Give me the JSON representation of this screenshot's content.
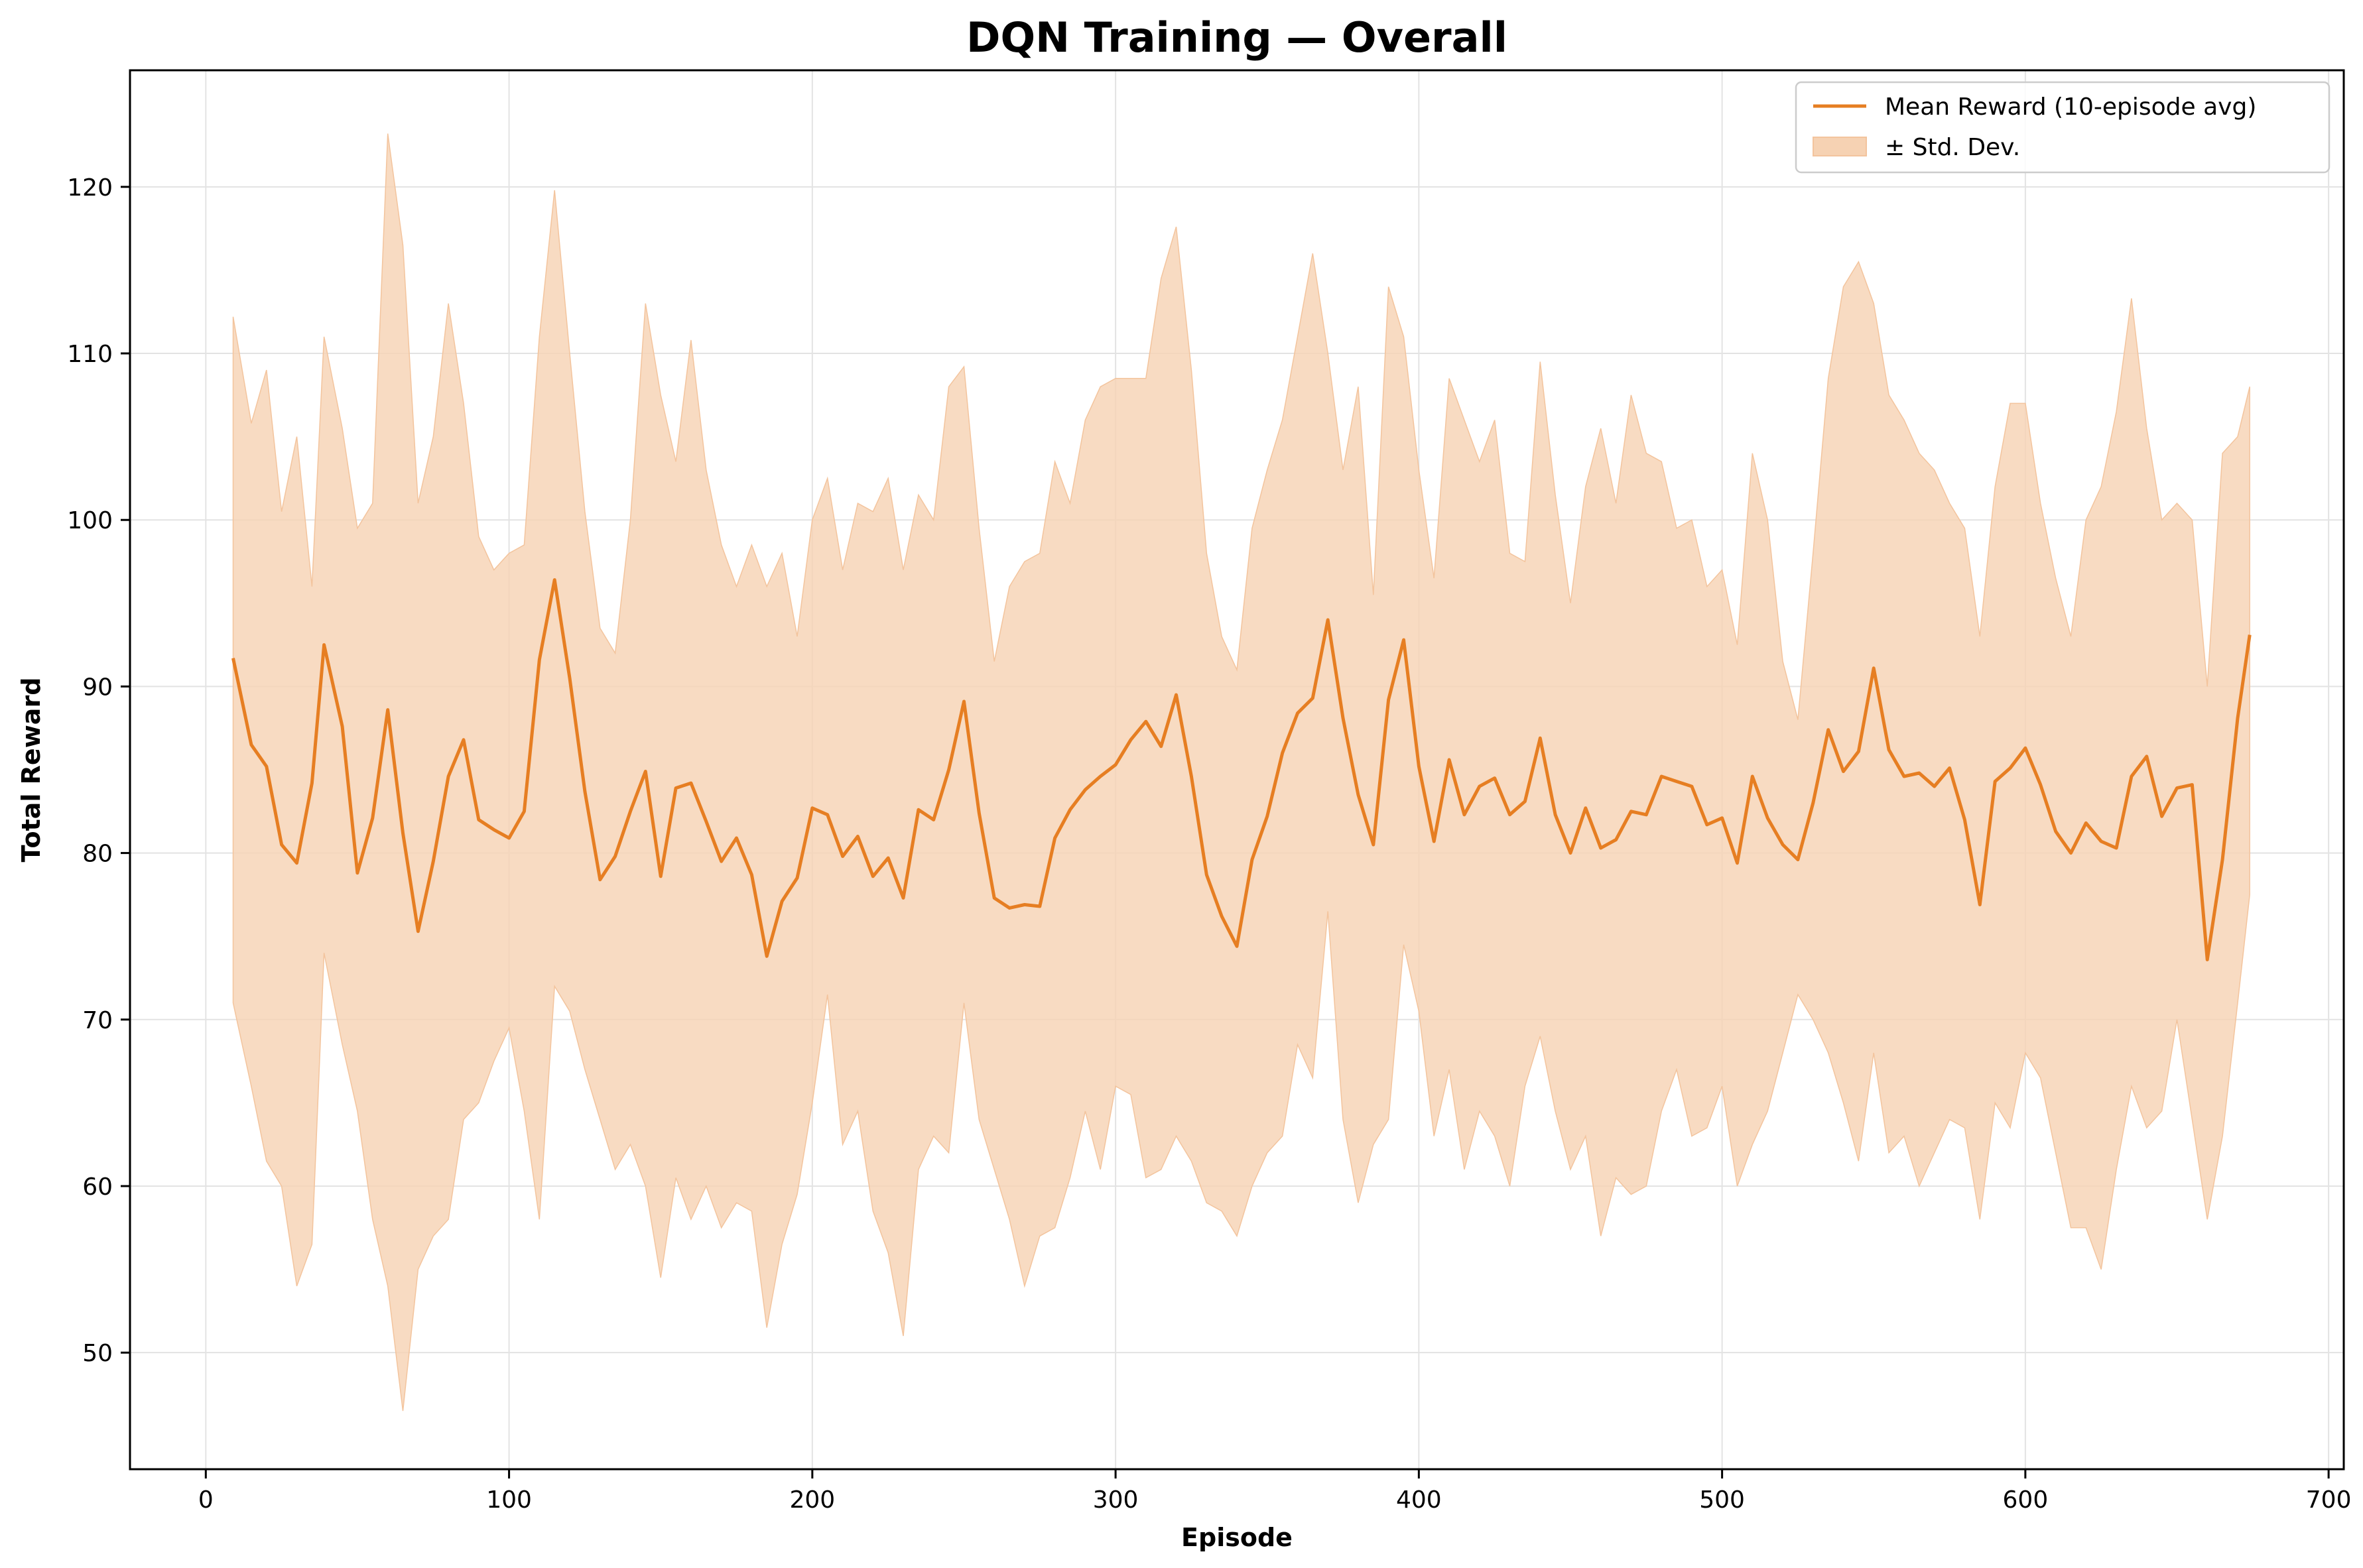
{
  "chart_data": {
    "type": "line",
    "title": "DQN Training — Overall",
    "xlabel": "Episode",
    "ylabel": "Total Reward",
    "xlim": [
      -25,
      705
    ],
    "ylim": [
      43,
      127
    ],
    "grid": true,
    "legend_position": "top-right",
    "xticks": [
      0,
      100,
      200,
      300,
      400,
      500,
      600,
      700
    ],
    "yticks": [
      50,
      60,
      70,
      80,
      90,
      100,
      110,
      120
    ],
    "legend": {
      "mean_label": "Mean Reward (10-episode avg)",
      "band_label": "± Std. Dev."
    },
    "colors": {
      "line": "#e67e22",
      "band": "#f6d2b3",
      "grid": "#e3e3e3",
      "axis": "#000000"
    },
    "series": [
      {
        "name": "Mean Reward (10-episode avg)",
        "x": [
          9,
          15,
          20,
          25,
          30,
          35,
          39,
          45,
          50,
          55,
          60,
          65,
          70,
          75,
          80,
          85,
          90,
          95,
          100,
          105,
          110,
          115,
          120,
          125,
          130,
          135,
          140,
          145,
          150,
          155,
          160,
          165,
          170,
          175,
          180,
          185,
          190,
          195,
          200,
          205,
          210,
          215,
          220,
          225,
          230,
          235,
          240,
          245,
          250,
          255,
          260,
          265,
          270,
          275,
          280,
          285,
          290,
          295,
          300,
          305,
          310,
          315,
          320,
          325,
          330,
          335,
          340,
          345,
          350,
          355,
          360,
          365,
          370,
          375,
          380,
          385,
          390,
          395,
          400,
          405,
          410,
          415,
          420,
          425,
          430,
          435,
          440,
          445,
          450,
          455,
          460,
          465,
          470,
          475,
          480,
          485,
          490,
          495,
          500,
          505,
          510,
          515,
          520,
          525,
          530,
          535,
          540,
          545,
          550,
          555,
          560,
          565,
          570,
          575,
          580,
          585,
          590,
          595,
          600,
          605,
          610,
          615,
          620,
          625,
          630,
          635,
          640,
          645,
          650,
          655,
          660,
          665,
          670,
          674
        ],
        "y": [
          91.7,
          86.5,
          85.2,
          80.5,
          79.4,
          84.2,
          92.5,
          87.6,
          78.8,
          82.1,
          88.6,
          81.2,
          75.3,
          79.5,
          84.6,
          86.8,
          82.0,
          81.4,
          80.9,
          82.5,
          91.6,
          96.4,
          90.5,
          83.7,
          78.4,
          79.8,
          82.5,
          84.9,
          78.6,
          83.9,
          84.2,
          81.9,
          79.5,
          80.9,
          78.7,
          73.8,
          77.1,
          78.5,
          82.7,
          82.3,
          79.8,
          81.0,
          78.6,
          79.7,
          77.3,
          82.6,
          82.0,
          85.0,
          89.1,
          82.4,
          77.3,
          76.7,
          76.9,
          76.8,
          80.9,
          82.6,
          83.8,
          84.6,
          85.3,
          86.8,
          87.9,
          86.4,
          89.5,
          84.6,
          78.7,
          76.2,
          74.4,
          79.6,
          82.2,
          86.0,
          88.4,
          89.3,
          94.0,
          88.1,
          83.5,
          80.5,
          89.2,
          92.8,
          85.2,
          80.7,
          85.6,
          82.3,
          84.0,
          84.5,
          82.3,
          83.1,
          86.9,
          82.3,
          80.0,
          82.7,
          80.3,
          80.8,
          82.5,
          82.3,
          84.6,
          84.3,
          84.0,
          81.7,
          82.1,
          79.4,
          84.6,
          82.1,
          80.5,
          79.6,
          83.0,
          87.4,
          84.9,
          86.1,
          91.1,
          86.2,
          84.6,
          84.8,
          84.0,
          85.1,
          82.0,
          76.9,
          84.3,
          85.1,
          86.3,
          84.1,
          81.3,
          80.0,
          81.8,
          80.7,
          80.3,
          84.6,
          85.8,
          82.2,
          83.9,
          84.1,
          73.6,
          79.6,
          88.1,
          93.1
        ]
      },
      {
        "name": "± Std. Dev.",
        "upper": [
          112.2,
          105.8,
          109.0,
          100.5,
          105.0,
          96.0,
          111.0,
          105.5,
          99.5,
          101.0,
          123.2,
          116.5,
          101.0,
          105.0,
          113.0,
          107.0,
          99.0,
          97.0,
          98.0,
          98.5,
          111.0,
          119.8,
          110.0,
          100.5,
          93.5,
          92.0,
          100.0,
          113.0,
          107.5,
          103.5,
          110.8,
          103.0,
          98.5,
          96.0,
          98.5,
          96.0,
          98.0,
          93.0,
          100.0,
          102.5,
          97.0,
          101.0,
          100.5,
          102.5,
          97.0,
          101.5,
          100.0,
          108.0,
          109.2,
          99.5,
          91.5,
          96.0,
          97.5,
          98.0,
          103.5,
          101.0,
          106.0,
          108.0,
          108.5,
          108.5,
          108.5,
          114.5,
          117.6,
          109.0,
          98.0,
          93.0,
          91.0,
          99.5,
          103.0,
          106.0,
          111.0,
          116.0,
          110.0,
          103.0,
          108.0,
          95.5,
          114.0,
          111.0,
          103.0,
          96.5,
          108.5,
          106.0,
          103.5,
          106.0,
          98.0,
          97.5,
          109.5,
          101.5,
          95.0,
          102.0,
          105.5,
          101.0,
          107.5,
          104.0,
          103.5,
          99.5,
          100.0,
          96.0,
          97.0,
          92.5,
          104.0,
          100.0,
          91.5,
          88.0,
          98.0,
          108.5,
          114.0,
          115.5,
          113.0,
          107.5,
          106.0,
          104.0,
          103.0,
          101.0,
          99.5,
          93.0,
          102.0,
          107.0,
          107.0,
          101.0,
          96.5,
          93.0,
          100.0,
          102.0,
          106.5,
          113.3,
          105.5,
          100.0,
          101.0,
          100.0,
          90.0,
          104.0,
          105.0,
          108.0
        ],
        "lower": [
          71.0,
          66.0,
          61.5,
          60.0,
          54.0,
          56.5,
          74.0,
          68.5,
          64.5,
          58.0,
          54.0,
          46.5,
          55.0,
          57.0,
          58.0,
          64.0,
          65.0,
          67.5,
          69.5,
          64.5,
          58.0,
          72.0,
          70.5,
          67.0,
          64.0,
          61.0,
          62.5,
          60.0,
          54.5,
          60.5,
          58.0,
          60.0,
          57.5,
          59.0,
          58.5,
          51.5,
          56.5,
          59.5,
          65.0,
          71.5,
          62.5,
          64.5,
          58.5,
          56.0,
          51.0,
          61.0,
          63.0,
          62.0,
          71.0,
          64.0,
          61.0,
          58.0,
          54.0,
          57.0,
          57.5,
          60.5,
          64.5,
          61.0,
          66.0,
          65.5,
          60.5,
          61.0,
          63.0,
          61.5,
          59.0,
          58.5,
          57.0,
          60.0,
          62.0,
          63.0,
          68.5,
          66.5,
          76.5,
          64.0,
          59.0,
          62.5,
          64.0,
          74.5,
          70.5,
          63.0,
          67.0,
          61.0,
          64.5,
          63.0,
          60.0,
          66.0,
          69.0,
          64.5,
          61.0,
          63.0,
          57.0,
          60.5,
          59.5,
          60.0,
          64.5,
          67.0,
          63.0,
          63.5,
          66.0,
          60.0,
          62.5,
          64.5,
          68.0,
          71.5,
          70.0,
          68.0,
          65.0,
          61.5,
          68.0,
          62.0,
          63.0,
          60.0,
          62.0,
          64.0,
          63.5,
          58.0,
          65.0,
          63.5,
          68.0,
          66.5,
          62.0,
          57.5,
          57.5,
          55.0,
          61.0,
          66.0,
          63.5,
          64.5,
          70.0,
          64.0,
          58.0,
          63.0,
          71.0,
          77.5
        ]
      }
    ]
  }
}
